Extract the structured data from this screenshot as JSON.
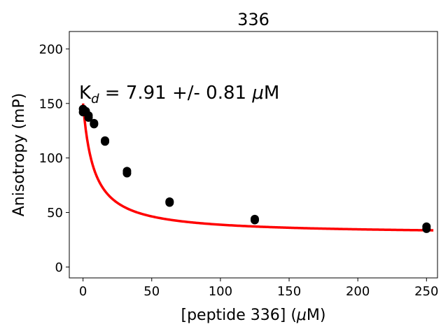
{
  "chart_data": {
    "type": "scatter",
    "title": "336",
    "xlabel": {
      "main": "[peptide 336] (",
      "mu": "μ",
      "unit": "M)"
    },
    "ylabel": "Anisotropy (mP)",
    "xlim": [
      -10,
      258
    ],
    "ylim": [
      -10,
      216
    ],
    "xticks": [
      0,
      50,
      100,
      150,
      200,
      250
    ],
    "yticks": [
      0,
      50,
      100,
      150,
      200
    ],
    "grid": false,
    "legend": "none",
    "annotation": {
      "prefix": "K",
      "sub": "d",
      "middle": " = 7.91 +/- 0.81 ",
      "mu": "μ",
      "suffix": "M"
    },
    "fit": {
      "color": "#ff0000",
      "kd": 7.91,
      "top": 150,
      "bottom": 30
    },
    "series": [
      {
        "color": "#000000",
        "x": [
          0,
          0,
          0.5,
          2,
          4,
          4,
          8,
          8,
          16,
          16,
          32,
          32,
          63,
          63,
          125,
          125,
          250,
          250
        ],
        "y": [
          145,
          142,
          144,
          143,
          139,
          137,
          132,
          131,
          116,
          115,
          88,
          86,
          60,
          59,
          44,
          43,
          37,
          35
        ]
      }
    ]
  }
}
